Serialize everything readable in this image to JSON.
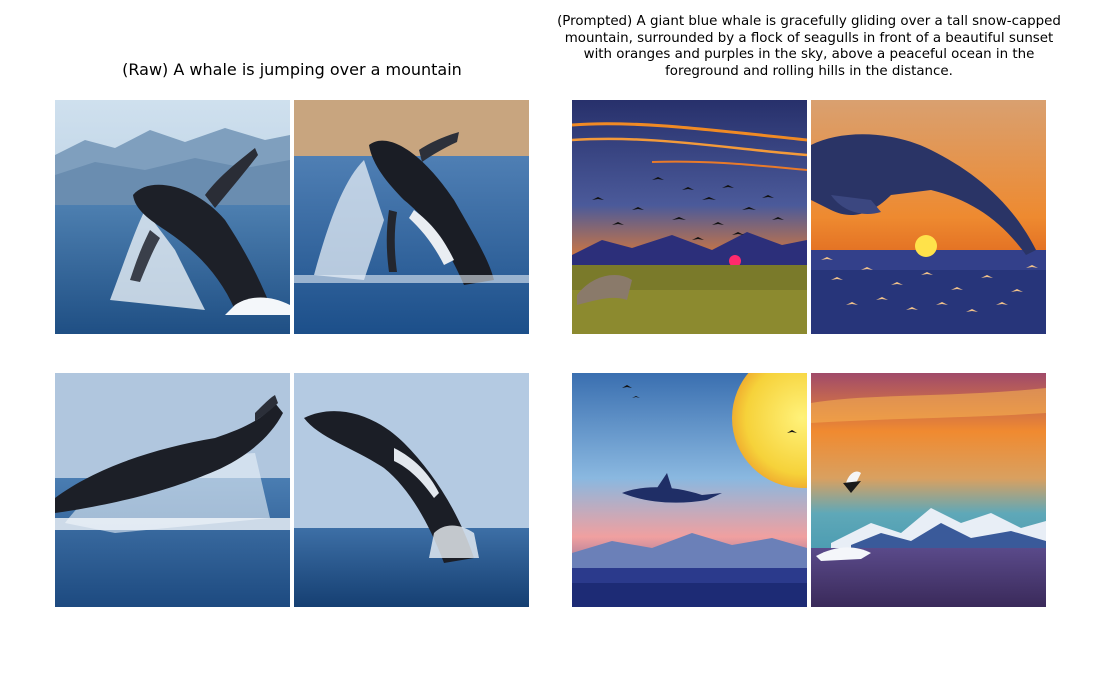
{
  "figure": {
    "raw_title": "(Raw) A whale is jumping over a mountain",
    "prompted_title": "(Prompted) A giant blue whale is gracefully gliding over a tall snow-capped mountain, surrounded by a flock of seagulls in front of a beautiful sunset with oranges and purples in the sky, above a peaceful ocean in the foreground and rolling hills in the distance."
  },
  "colors": {
    "background": "#ffffff",
    "ocean_blue": "#2a5a8f",
    "sunset_orange": "#f08a24",
    "sky_purple": "#5a4a8a"
  }
}
